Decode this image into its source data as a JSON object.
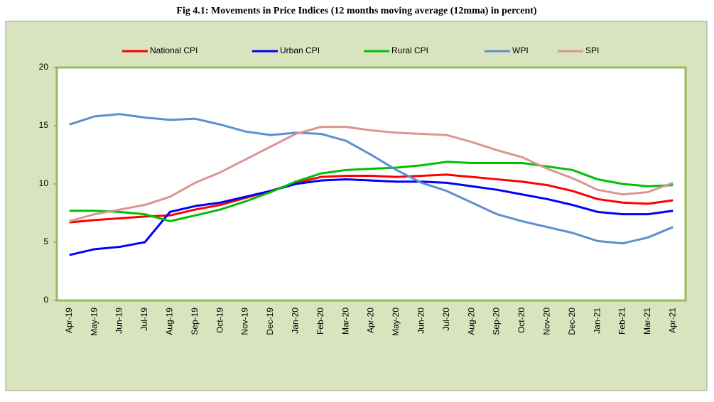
{
  "chart_data": {
    "type": "line",
    "title": "Fig 4.1: Movements in Price Indices (12 months moving average (12mma) in percent)",
    "categories": [
      "Apr-19",
      "May-19",
      "Jun-19",
      "Jul-19",
      "Aug-19",
      "Sep-19",
      "Oct-19",
      "Nov-19",
      "Dec-19",
      "Jan-20",
      "Feb-20",
      "Mar-20",
      "Apr-20",
      "May-20",
      "Jun-20",
      "Jul-20",
      "Aug-20",
      "Sep-20",
      "Oct-20",
      "Nov-20",
      "Dec-20",
      "Jan-21",
      "Feb-21",
      "Mar-21",
      "Apr-21"
    ],
    "series": [
      {
        "name": "National CPI",
        "color": "#ff0000",
        "values": [
          6.7,
          6.9,
          7.05,
          7.2,
          7.3,
          7.8,
          8.2,
          8.8,
          9.4,
          10.1,
          10.6,
          10.7,
          10.7,
          10.6,
          10.7,
          10.8,
          10.6,
          10.4,
          10.2,
          9.9,
          9.4,
          8.7,
          8.4,
          8.3,
          8.6
        ]
      },
      {
        "name": "Urban CPI",
        "color": "#0000ff",
        "values": [
          3.9,
          4.4,
          4.6,
          5.0,
          7.6,
          8.1,
          8.4,
          8.9,
          9.4,
          10.0,
          10.3,
          10.4,
          10.3,
          10.2,
          10.2,
          10.1,
          9.8,
          9.5,
          9.1,
          8.7,
          8.2,
          7.6,
          7.4,
          7.4,
          7.7
        ]
      },
      {
        "name": "Rural CPI",
        "color": "#00c000",
        "values": [
          7.7,
          7.7,
          7.6,
          7.4,
          6.8,
          7.3,
          7.8,
          8.5,
          9.3,
          10.2,
          10.9,
          11.2,
          11.3,
          11.4,
          11.6,
          11.9,
          11.8,
          11.8,
          11.8,
          11.5,
          11.2,
          10.4,
          10.0,
          9.8,
          9.9
        ]
      },
      {
        "name": "WPI",
        "color": "#5b8fd0",
        "values": [
          15.1,
          15.8,
          16.0,
          15.7,
          15.5,
          15.6,
          15.1,
          14.5,
          14.2,
          14.4,
          14.3,
          13.7,
          12.5,
          11.2,
          10.1,
          9.4,
          8.4,
          7.4,
          6.8,
          6.3,
          5.8,
          5.1,
          4.9,
          5.4,
          6.3
        ]
      },
      {
        "name": "SPI",
        "color": "#d99694",
        "values": [
          6.8,
          7.4,
          7.8,
          8.2,
          8.9,
          10.1,
          11.0,
          12.1,
          13.2,
          14.3,
          14.9,
          14.9,
          14.6,
          14.4,
          14.3,
          14.2,
          13.6,
          12.9,
          12.3,
          11.3,
          10.5,
          9.5,
          9.1,
          9.3,
          10.1
        ]
      }
    ],
    "ylim": [
      0,
      20
    ],
    "yticks": [
      0,
      5,
      10,
      15,
      20
    ],
    "legend": "top"
  }
}
